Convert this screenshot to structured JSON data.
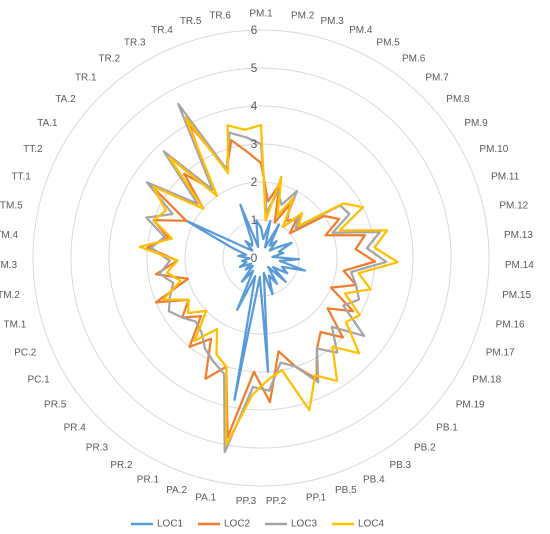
{
  "chart_data": {
    "type": "radar",
    "categories": [
      "PM.1",
      "PM.2",
      "PM.3",
      "PM.4",
      "PM.5",
      "PM.6",
      "PM.7",
      "PM.8",
      "PM.9",
      "PM.10",
      "PM.11",
      "PM.12",
      "PM.13",
      "PM.14",
      "PM.15",
      "PM.16",
      "PM.17",
      "PM.18",
      "PM.19",
      "PB.1",
      "PB.2",
      "PB.3",
      "PB.4",
      "PB.5",
      "PP.1",
      "PP.2",
      "PP.3",
      "PA.1",
      "PA.2",
      "PR.1",
      "PR.2",
      "PR.3",
      "PR.4",
      "PR.5",
      "PC.1",
      "PC.2",
      "TM.1",
      "TM.2",
      "TM.3",
      "TM.4",
      "TM.5",
      "TT.1",
      "TT.2",
      "TA.1",
      "TA.2",
      "TR.1",
      "TR.2",
      "TR.3",
      "TR.4",
      "TR.5",
      "TR.6"
    ],
    "series": [
      {
        "name": "LOC1",
        "color": "#5B9BD5",
        "values": [
          0.8,
          0.5,
          1.0,
          0.3,
          1.0,
          0.4,
          0.6,
          0.3,
          0.5,
          0.9,
          0.5,
          0.6,
          0.3,
          1.0,
          0.5,
          1.2,
          0.6,
          0.8,
          0.4,
          0.9,
          0.3,
          0.8,
          0.5,
          1.0,
          0.4,
          3.0,
          0.5,
          3.8,
          0.5,
          1.5,
          0.4,
          0.8,
          0.3,
          0.5,
          0.3,
          0.6,
          0.4,
          0.5,
          0.3,
          0.6,
          0.4,
          0.8,
          2.2,
          0.5,
          0.3,
          0.6,
          0.4,
          0.5,
          1.5,
          0.3,
          1.0
        ]
      },
      {
        "name": "LOC2",
        "color": "#ED7D31",
        "values": [
          2.5,
          1.5,
          2.0,
          1.0,
          1.6,
          1.2,
          1.4,
          1.0,
          2.0,
          2.3,
          1.8,
          2.8,
          2.5,
          3.0,
          2.2,
          2.6,
          2.0,
          2.8,
          2.2,
          3.0,
          2.5,
          2.8,
          3.5,
          3.0,
          2.5,
          3.8,
          3.0,
          4.8,
          3.0,
          3.5,
          2.5,
          3.0,
          2.2,
          2.6,
          2.2,
          3.0,
          2.0,
          2.8,
          2.2,
          3.0,
          2.5,
          3.0,
          2.2,
          3.5,
          2.0,
          3.0,
          2.2,
          4.0,
          2.5,
          3.2,
          2.8
        ]
      },
      {
        "name": "LOC3",
        "color": "#A5A5A5",
        "values": [
          3.0,
          1.2,
          1.8,
          1.5,
          2.0,
          1.0,
          1.5,
          1.2,
          2.5,
          2.6,
          2.0,
          3.2,
          2.8,
          3.3,
          2.4,
          2.6,
          2.8,
          2.5,
          3.4,
          2.6,
          3.2,
          2.8,
          3.6,
          3.0,
          2.8,
          3.5,
          3.4,
          5.2,
          3.2,
          3.0,
          2.8,
          2.5,
          2.4,
          2.6,
          2.8,
          2.6,
          2.4,
          2.7,
          2.4,
          2.9,
          2.6,
          3.2,
          2.6,
          3.6,
          2.2,
          3.8,
          2.2,
          4.6,
          2.5,
          3.4,
          3.2
        ]
      },
      {
        "name": "LOC4",
        "color": "#FFC000",
        "values": [
          3.5,
          1.0,
          2.2,
          1.2,
          1.8,
          1.0,
          1.6,
          1.3,
          2.6,
          3.0,
          2.2,
          3.4,
          3.0,
          3.6,
          2.6,
          3.0,
          2.4,
          3.0,
          2.8,
          3.6,
          3.0,
          3.8,
          3.4,
          4.2,
          3.0,
          3.2,
          3.6,
          5.0,
          3.0,
          2.8,
          2.2,
          2.8,
          2.0,
          2.4,
          2.2,
          2.8,
          2.2,
          2.5,
          2.2,
          3.2,
          2.4,
          3.0,
          2.8,
          3.4,
          2.0,
          3.6,
          2.0,
          4.2,
          2.4,
          3.6,
          3.4
        ]
      }
    ],
    "ylim": [
      0,
      6
    ],
    "yticks": [
      0,
      1,
      2,
      3,
      4,
      5,
      6
    ],
    "grid": true,
    "legend": "bottom"
  }
}
